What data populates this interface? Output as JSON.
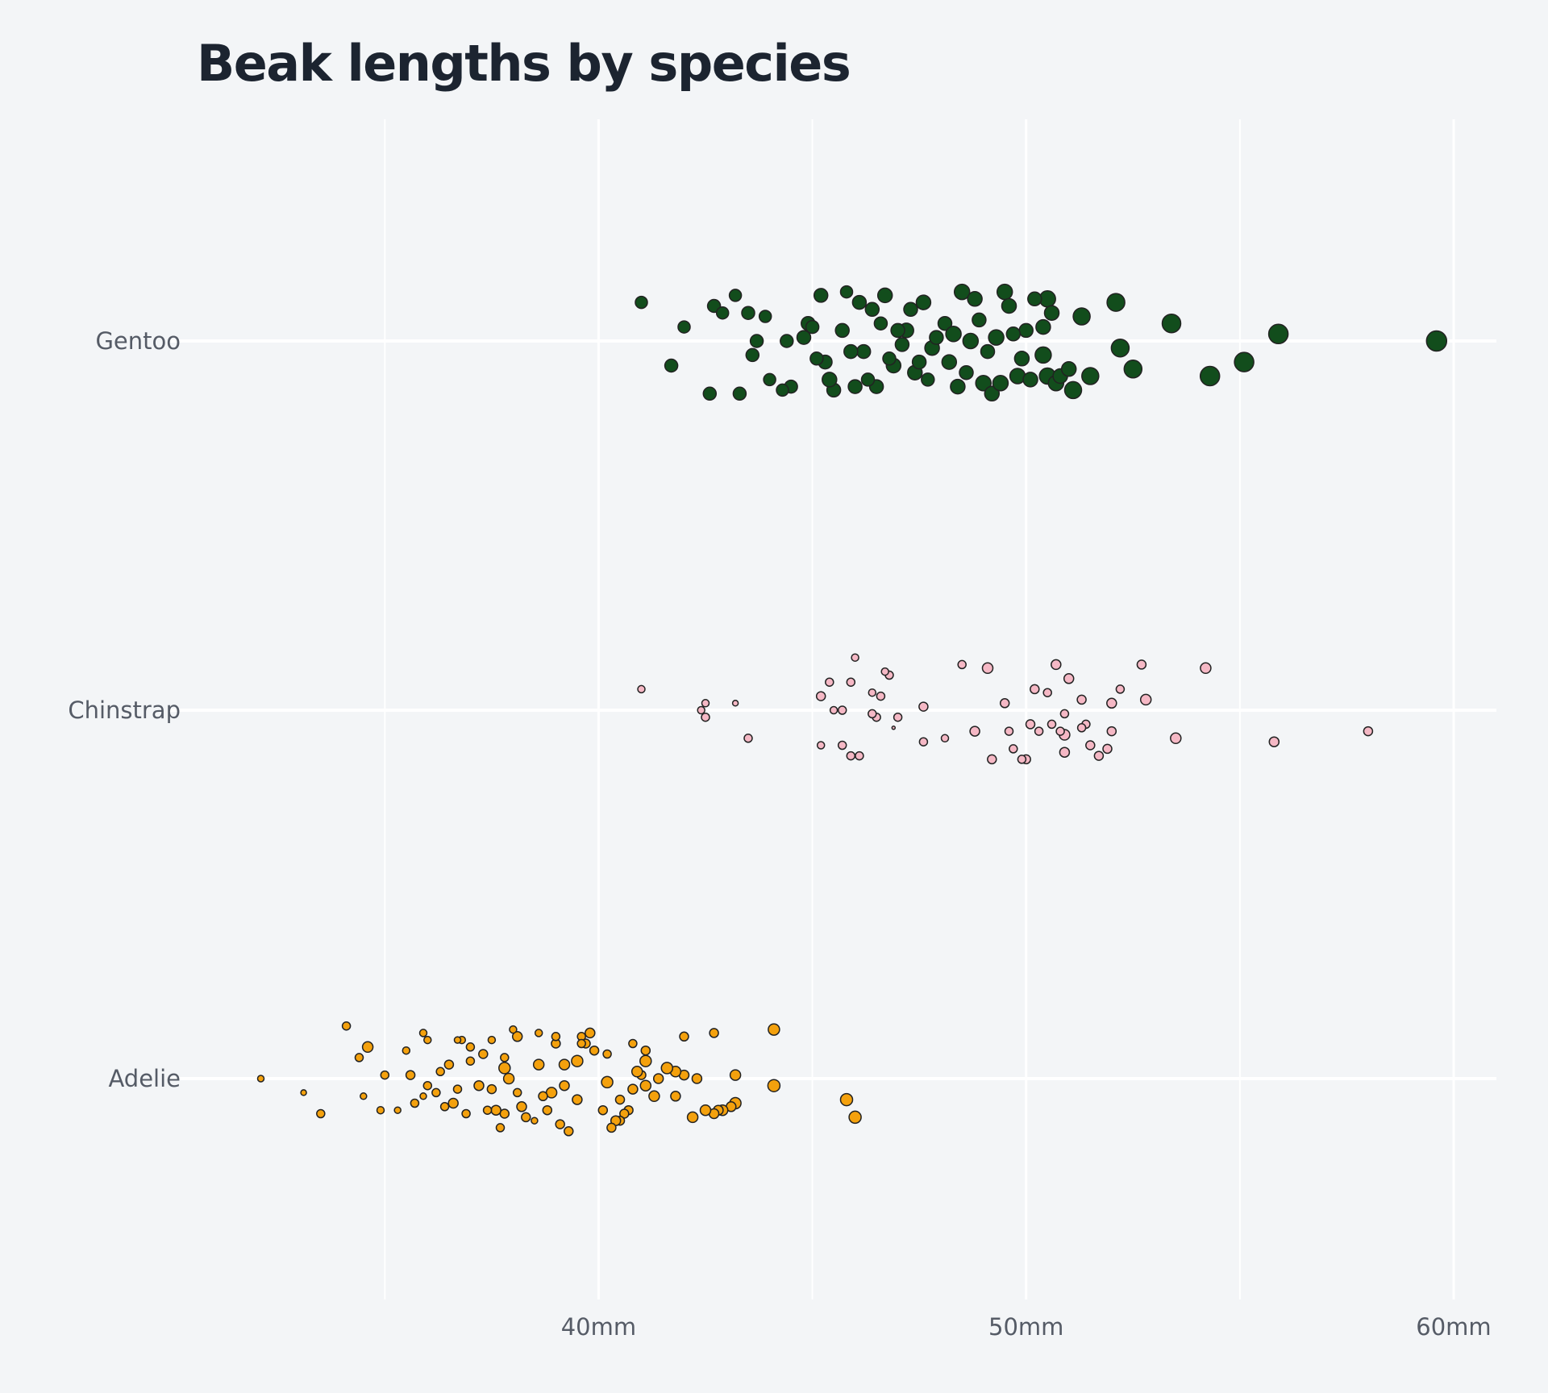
{
  "chart_data": {
    "type": "scatter",
    "title": "Beak lengths by species",
    "xlabel": "",
    "ylabel": "",
    "xlim": [
      30.6,
      61.0
    ],
    "x_ticks": [
      40,
      50,
      60
    ],
    "x_tick_labels": [
      "40mm",
      "50mm",
      "60mm"
    ],
    "x_minor_ticks": [
      35,
      45,
      55
    ],
    "categories": [
      "Gentoo",
      "Chinstrap",
      "Adelie"
    ],
    "grid": true,
    "legend": "none",
    "series": [
      {
        "color": "#124d1c",
        "points": [
          [
            59.6,
            0.0,
            25
          ],
          [
            55.9,
            -0.02,
            24
          ],
          [
            55.1,
            0.06,
            24
          ],
          [
            54.3,
            0.1,
            24
          ],
          [
            53.4,
            -0.05,
            23
          ],
          [
            52.5,
            0.08,
            22
          ],
          [
            52.1,
            -0.11,
            22
          ],
          [
            52.2,
            0.02,
            22
          ],
          [
            51.5,
            0.1,
            21
          ],
          [
            51.1,
            0.14,
            21
          ],
          [
            51.3,
            -0.07,
            21
          ],
          [
            50.5,
            0.1,
            20
          ],
          [
            50.5,
            -0.12,
            20
          ],
          [
            50.4,
            0.04,
            20
          ],
          [
            49.8,
            0.1,
            19
          ],
          [
            49.5,
            -0.14,
            19
          ],
          [
            49.3,
            -0.01,
            19
          ],
          [
            49.0,
            0.12,
            19
          ],
          [
            48.7,
            0.0,
            19
          ],
          [
            48.5,
            -0.14,
            19
          ],
          [
            48.4,
            0.13,
            18
          ],
          [
            48.2,
            0.06,
            18
          ],
          [
            47.8,
            0.02,
            18
          ],
          [
            47.6,
            -0.11,
            18
          ],
          [
            47.4,
            0.09,
            18
          ],
          [
            47.2,
            -0.03,
            18
          ],
          [
            46.9,
            0.07,
            18
          ],
          [
            46.7,
            -0.13,
            18
          ],
          [
            46.5,
            0.13,
            17
          ],
          [
            46.2,
            0.03,
            17
          ],
          [
            46.1,
            -0.11,
            17
          ],
          [
            45.7,
            -0.03,
            17
          ],
          [
            45.5,
            0.14,
            17
          ],
          [
            45.3,
            0.06,
            17
          ],
          [
            45.2,
            -0.13,
            17
          ],
          [
            44.9,
            -0.05,
            17
          ],
          [
            44.5,
            0.13,
            16
          ],
          [
            44.4,
            0.0,
            16
          ],
          [
            43.6,
            0.04,
            16
          ],
          [
            43.3,
            0.15,
            16
          ],
          [
            43.5,
            -0.08,
            16
          ],
          [
            42.7,
            -0.1,
            16
          ],
          [
            42.6,
            0.15,
            16
          ],
          [
            41.7,
            0.07,
            16
          ],
          [
            42.0,
            -0.04,
            15
          ],
          [
            41.0,
            -0.11,
            15
          ],
          [
            42.9,
            -0.08,
            15
          ],
          [
            43.2,
            -0.13,
            15
          ],
          [
            43.9,
            -0.07,
            15
          ],
          [
            44.0,
            0.11,
            15
          ],
          [
            45.1,
            0.05,
            16
          ],
          [
            45.8,
            -0.14,
            15
          ],
          [
            46.3,
            0.11,
            16
          ],
          [
            46.6,
            -0.05,
            16
          ],
          [
            46.8,
            0.05,
            16
          ],
          [
            47.1,
            0.01,
            17
          ],
          [
            47.3,
            -0.09,
            17
          ],
          [
            47.5,
            0.06,
            17
          ],
          [
            47.7,
            0.11,
            16
          ],
          [
            48.1,
            -0.05,
            17
          ],
          [
            48.6,
            0.09,
            17
          ],
          [
            48.8,
            -0.12,
            18
          ],
          [
            49.1,
            0.03,
            17
          ],
          [
            49.2,
            0.15,
            18
          ],
          [
            49.6,
            -0.1,
            18
          ],
          [
            49.9,
            0.05,
            18
          ],
          [
            50.0,
            -0.03,
            17
          ],
          [
            50.1,
            0.11,
            18
          ],
          [
            50.2,
            -0.12,
            17
          ],
          [
            50.4,
            -0.04,
            18
          ],
          [
            50.7,
            0.12,
            19
          ],
          [
            50.8,
            0.1,
            18
          ],
          [
            51.0,
            0.08,
            18
          ],
          [
            48.3,
            -0.02,
            19
          ],
          [
            46.4,
            -0.09,
            17
          ],
          [
            45.9,
            0.03,
            17
          ],
          [
            44.8,
            -0.01,
            17
          ],
          [
            43.7,
            0.0,
            16
          ],
          [
            44.3,
            0.14,
            15
          ],
          [
            47.9,
            -0.01,
            17
          ],
          [
            49.4,
            0.12,
            19
          ],
          [
            50.6,
            -0.08,
            18
          ],
          [
            46.0,
            0.13,
            17
          ],
          [
            45.4,
            0.11,
            18
          ],
          [
            47.0,
            -0.03,
            17
          ],
          [
            48.9,
            -0.06,
            17
          ],
          [
            49.7,
            -0.02,
            17
          ],
          [
            45.0,
            -0.04,
            16
          ]
        ]
      },
      {
        "color": "#f5b8c5",
        "points": [
          [
            58.0,
            0.06,
            11
          ],
          [
            55.8,
            0.09,
            12
          ],
          [
            54.2,
            -0.12,
            13
          ],
          [
            53.5,
            0.08,
            13
          ],
          [
            52.8,
            -0.03,
            13
          ],
          [
            52.7,
            -0.13,
            11
          ],
          [
            52.2,
            -0.06,
            10
          ],
          [
            52.0,
            0.06,
            11
          ],
          [
            52.0,
            -0.02,
            12
          ],
          [
            51.9,
            0.11,
            11
          ],
          [
            51.7,
            0.13,
            11
          ],
          [
            51.5,
            0.1,
            11
          ],
          [
            51.4,
            0.04,
            10
          ],
          [
            51.3,
            -0.03,
            11
          ],
          [
            51.3,
            0.05,
            10
          ],
          [
            51.0,
            -0.09,
            12
          ],
          [
            50.9,
            0.12,
            12
          ],
          [
            50.9,
            0.07,
            13
          ],
          [
            50.9,
            0.01,
            10
          ],
          [
            50.8,
            0.06,
            10
          ],
          [
            50.7,
            -0.13,
            12
          ],
          [
            50.6,
            0.04,
            10
          ],
          [
            50.5,
            -0.05,
            10
          ],
          [
            50.3,
            0.06,
            10
          ],
          [
            50.2,
            -0.06,
            11
          ],
          [
            50.1,
            0.04,
            11
          ],
          [
            50.0,
            0.14,
            11
          ],
          [
            49.9,
            0.14,
            10
          ],
          [
            49.7,
            0.11,
            10
          ],
          [
            49.6,
            0.06,
            10
          ],
          [
            49.5,
            -0.02,
            11
          ],
          [
            49.2,
            0.14,
            11
          ],
          [
            49.1,
            -0.12,
            13
          ],
          [
            48.8,
            0.06,
            12
          ],
          [
            48.5,
            -0.13,
            10
          ],
          [
            48.1,
            0.08,
            9
          ],
          [
            47.6,
            0.09,
            10
          ],
          [
            47.6,
            -0.01,
            11
          ],
          [
            47.0,
            0.02,
            10
          ],
          [
            46.9,
            0.05,
            4
          ],
          [
            46.8,
            -0.1,
            10
          ],
          [
            46.7,
            -0.11,
            9
          ],
          [
            46.6,
            -0.04,
            10
          ],
          [
            46.5,
            0.02,
            10
          ],
          [
            46.4,
            -0.05,
            9
          ],
          [
            46.4,
            0.01,
            10
          ],
          [
            46.1,
            0.13,
            10
          ],
          [
            46.0,
            -0.15,
            9
          ],
          [
            45.9,
            0.13,
            10
          ],
          [
            45.9,
            -0.08,
            10
          ],
          [
            45.7,
            0.1,
            10
          ],
          [
            45.7,
            0.0,
            10
          ],
          [
            45.5,
            0.0,
            9
          ],
          [
            45.4,
            -0.08,
            10
          ],
          [
            45.2,
            -0.04,
            11
          ],
          [
            45.2,
            0.1,
            9
          ],
          [
            43.5,
            0.08,
            10
          ],
          [
            43.2,
            -0.02,
            7
          ],
          [
            42.5,
            0.02,
            10
          ],
          [
            42.5,
            -0.02,
            9
          ],
          [
            42.4,
            0.0,
            9
          ],
          [
            41.0,
            -0.06,
            9
          ]
        ]
      },
      {
        "color": "#f4a10d",
        "points": [
          [
            46.0,
            0.11,
            15
          ],
          [
            45.8,
            0.06,
            15
          ],
          [
            44.1,
            0.02,
            15
          ],
          [
            44.1,
            -0.14,
            14
          ],
          [
            43.2,
            0.07,
            14
          ],
          [
            43.1,
            0.08,
            12
          ],
          [
            43.2,
            -0.01,
            13
          ],
          [
            42.9,
            0.09,
            13
          ],
          [
            42.8,
            0.09,
            12
          ],
          [
            42.7,
            0.1,
            12
          ],
          [
            42.5,
            0.09,
            13
          ],
          [
            42.3,
            0.0,
            12
          ],
          [
            42.2,
            0.11,
            13
          ],
          [
            42.0,
            -0.01,
            12
          ],
          [
            41.8,
            -0.02,
            13
          ],
          [
            41.6,
            -0.03,
            14
          ],
          [
            41.4,
            0.0,
            12
          ],
          [
            41.3,
            0.05,
            13
          ],
          [
            41.1,
            0.02,
            13
          ],
          [
            41.1,
            -0.05,
            14
          ],
          [
            41.0,
            -0.01,
            11
          ],
          [
            40.9,
            -0.02,
            13
          ],
          [
            40.8,
            0.03,
            12
          ],
          [
            40.7,
            0.09,
            11
          ],
          [
            40.6,
            0.1,
            11
          ],
          [
            40.5,
            0.12,
            11
          ],
          [
            40.4,
            0.12,
            12
          ],
          [
            40.3,
            0.14,
            11
          ],
          [
            40.2,
            0.01,
            14
          ],
          [
            40.1,
            0.09,
            11
          ],
          [
            39.8,
            -0.13,
            12
          ],
          [
            39.7,
            -0.1,
            11
          ],
          [
            39.6,
            -0.12,
            10
          ],
          [
            39.5,
            0.06,
            12
          ],
          [
            39.5,
            -0.05,
            14
          ],
          [
            39.3,
            0.15,
            11
          ],
          [
            39.2,
            -0.04,
            13
          ],
          [
            39.1,
            0.13,
            11
          ],
          [
            39.0,
            -0.1,
            11
          ],
          [
            38.9,
            0.04,
            13
          ],
          [
            38.8,
            0.09,
            11
          ],
          [
            38.7,
            0.05,
            11
          ],
          [
            38.6,
            -0.04,
            13
          ],
          [
            38.5,
            0.12,
            8
          ],
          [
            38.3,
            0.11,
            11
          ],
          [
            38.2,
            0.08,
            12
          ],
          [
            38.1,
            -0.12,
            12
          ],
          [
            37.9,
            0.0,
            13
          ],
          [
            37.8,
            0.1,
            11
          ],
          [
            37.8,
            -0.03,
            14
          ],
          [
            37.7,
            0.14,
            10
          ],
          [
            37.6,
            0.09,
            12
          ],
          [
            37.5,
            0.03,
            11
          ],
          [
            37.3,
            -0.07,
            11
          ],
          [
            37.2,
            0.02,
            12
          ],
          [
            37.0,
            -0.05,
            10
          ],
          [
            36.9,
            0.1,
            10
          ],
          [
            36.8,
            -0.11,
            9
          ],
          [
            36.6,
            0.07,
            12
          ],
          [
            36.5,
            -0.04,
            11
          ],
          [
            36.4,
            0.08,
            10
          ],
          [
            36.3,
            -0.02,
            10
          ],
          [
            36.2,
            0.04,
            10
          ],
          [
            36.0,
            0.02,
            10
          ],
          [
            35.9,
            0.05,
            8
          ],
          [
            35.7,
            0.07,
            10
          ],
          [
            35.6,
            -0.01,
            11
          ],
          [
            35.5,
            -0.08,
            9
          ],
          [
            35.3,
            0.09,
            8
          ],
          [
            35.0,
            -0.01,
            10
          ],
          [
            34.9,
            0.09,
            9
          ],
          [
            34.6,
            -0.09,
            13
          ],
          [
            34.5,
            0.05,
            8
          ],
          [
            34.4,
            -0.06,
            10
          ],
          [
            34.1,
            -0.15,
            10
          ],
          [
            33.5,
            0.1,
            10
          ],
          [
            33.1,
            0.04,
            7
          ],
          [
            32.1,
            0.0,
            8
          ],
          [
            36.0,
            -0.11,
            9
          ],
          [
            36.7,
            -0.11,
            8
          ],
          [
            37.0,
            -0.09,
            10
          ],
          [
            37.5,
            -0.11,
            9
          ],
          [
            38.0,
            -0.14,
            9
          ],
          [
            38.6,
            -0.13,
            9
          ],
          [
            39.0,
            -0.12,
            10
          ],
          [
            39.6,
            -0.1,
            10
          ],
          [
            40.2,
            -0.07,
            10
          ],
          [
            41.1,
            -0.08,
            11
          ],
          [
            42.0,
            -0.12,
            11
          ],
          [
            42.7,
            -0.13,
            11
          ],
          [
            36.7,
            0.03,
            10
          ],
          [
            38.1,
            0.04,
            10
          ],
          [
            39.2,
            0.02,
            12
          ],
          [
            40.5,
            0.06,
            11
          ],
          [
            41.8,
            0.05,
            12
          ],
          [
            35.9,
            -0.13,
            9
          ],
          [
            37.8,
            -0.06,
            10
          ],
          [
            39.9,
            -0.08,
            11
          ],
          [
            40.8,
            -0.1,
            10
          ],
          [
            37.4,
            0.09,
            10
          ]
        ]
      }
    ]
  }
}
